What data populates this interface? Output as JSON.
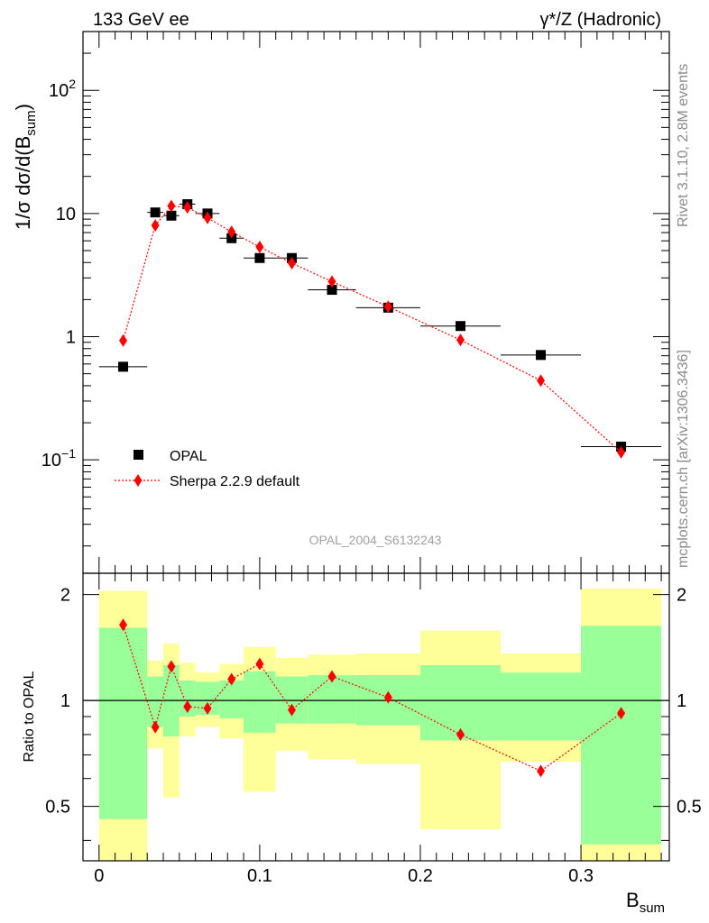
{
  "header": {
    "left": "133 GeV ee",
    "right": "γ*/Z (Hadronic)"
  },
  "side": {
    "rivet": "Rivet 3.1.10,  2.8M events",
    "mcplots": "mcplots.cern.ch [arXiv:1306.3436]"
  },
  "watermark": "OPAL_2004_S6132243",
  "legend": {
    "data_label": "OPAL",
    "mc_label": "Sherpa 2.2.9 default"
  },
  "colors": {
    "data": "#000000",
    "mc": "#ff0000",
    "band_inner": "#99ff99",
    "band_outer": "#ffff99"
  },
  "chart_data": [
    {
      "type": "scatter",
      "panel": "main",
      "ylabel_main": "1/σ dσ/d(B",
      "ylabel_sub": "sum",
      "ylabel_close": ")",
      "yscale": "log",
      "ylim": [
        0.012,
        300
      ],
      "xlim": [
        -0.01,
        0.355
      ],
      "y_ticks": [
        {
          "value": 0.1,
          "base": "10",
          "exp": "−1"
        },
        {
          "value": 1,
          "text": "1"
        },
        {
          "value": 10,
          "text": "10"
        },
        {
          "value": 100,
          "base": "10",
          "exp": "2"
        }
      ],
      "series": [
        {
          "name": "OPAL",
          "marker": "square",
          "x": [
            0.015,
            0.035,
            0.045,
            0.055,
            0.0675,
            0.0825,
            0.1,
            0.12,
            0.145,
            0.18,
            0.225,
            0.275,
            0.325
          ],
          "y": [
            0.57,
            10.2,
            9.6,
            11.9,
            10.0,
            6.3,
            4.35,
            4.35,
            2.4,
            1.72,
            1.22,
            0.71,
            0.128
          ],
          "xerr": [
            0.015,
            0.005,
            0.005,
            0.005,
            0.0075,
            0.0075,
            0.01,
            0.01,
            0.015,
            0.02,
            0.025,
            0.025,
            0.025
          ]
        },
        {
          "name": "Sherpa 2.2.9 default",
          "marker": "diamond",
          "x": [
            0.015,
            0.035,
            0.045,
            0.055,
            0.0675,
            0.0825,
            0.1,
            0.12,
            0.145,
            0.18,
            0.225,
            0.275,
            0.325
          ],
          "y": [
            0.93,
            8.0,
            11.5,
            11.2,
            9.2,
            7.1,
            5.35,
            3.95,
            2.8,
            1.75,
            0.94,
            0.44,
            0.115
          ]
        }
      ]
    },
    {
      "type": "line",
      "panel": "ratio",
      "ylabel": "Ratio to OPAL",
      "xlabel_base": "B",
      "xlabel_sub": "sum",
      "yscale": "log",
      "ylim": [
        0.35,
        2.3
      ],
      "xlim": [
        -0.01,
        0.355
      ],
      "x_ticks": [
        {
          "value": 0,
          "text": "0"
        },
        {
          "value": 0.1,
          "text": "0.1"
        },
        {
          "value": 0.2,
          "text": "0.2"
        },
        {
          "value": 0.3,
          "text": "0.3"
        }
      ],
      "y_ticks": [
        {
          "value": 0.5,
          "text": "0.5"
        },
        {
          "value": 1,
          "text": "1"
        },
        {
          "value": 2,
          "text": "2"
        }
      ],
      "bands": [
        {
          "x0": 0.0,
          "x1": 0.03,
          "in_lo": 0.46,
          "in_hi": 1.61,
          "out_lo": 0.3,
          "out_hi": 2.05
        },
        {
          "x0": 0.03,
          "x1": 0.04,
          "in_lo": 0.84,
          "in_hi": 1.17,
          "out_lo": 0.73,
          "out_hi": 1.3
        },
        {
          "x0": 0.04,
          "x1": 0.05,
          "in_lo": 0.79,
          "in_hi": 1.26,
          "out_lo": 0.53,
          "out_hi": 1.45
        },
        {
          "x0": 0.05,
          "x1": 0.06,
          "in_lo": 0.9,
          "in_hi": 1.14,
          "out_lo": 0.79,
          "out_hi": 1.28
        },
        {
          "x0": 0.06,
          "x1": 0.075,
          "in_lo": 0.91,
          "in_hi": 1.13,
          "out_lo": 0.84,
          "out_hi": 1.2
        },
        {
          "x0": 0.075,
          "x1": 0.09,
          "in_lo": 0.89,
          "in_hi": 1.14,
          "out_lo": 0.78,
          "out_hi": 1.27
        },
        {
          "x0": 0.09,
          "x1": 0.11,
          "in_lo": 0.81,
          "in_hi": 1.21,
          "out_lo": 0.55,
          "out_hi": 1.42
        },
        {
          "x0": 0.11,
          "x1": 0.13,
          "in_lo": 0.86,
          "in_hi": 1.17,
          "out_lo": 0.72,
          "out_hi": 1.32
        },
        {
          "x0": 0.13,
          "x1": 0.16,
          "in_lo": 0.86,
          "in_hi": 1.18,
          "out_lo": 0.68,
          "out_hi": 1.35
        },
        {
          "x0": 0.16,
          "x1": 0.2,
          "in_lo": 0.85,
          "in_hi": 1.18,
          "out_lo": 0.66,
          "out_hi": 1.36
        },
        {
          "x0": 0.2,
          "x1": 0.25,
          "in_lo": 0.77,
          "in_hi": 1.26,
          "out_lo": 0.43,
          "out_hi": 1.58
        },
        {
          "x0": 0.25,
          "x1": 0.3,
          "in_lo": 0.77,
          "in_hi": 1.2,
          "out_lo": 0.67,
          "out_hi": 1.36
        },
        {
          "x0": 0.3,
          "x1": 0.35,
          "in_lo": 0.39,
          "in_hi": 1.63,
          "out_lo": 0.35,
          "out_hi": 2.08
        }
      ],
      "series": [
        {
          "name": "Sherpa 2.2.9 default",
          "marker": "diamond",
          "x": [
            0.015,
            0.035,
            0.045,
            0.055,
            0.0675,
            0.0825,
            0.1,
            0.12,
            0.145,
            0.18,
            0.225,
            0.275,
            0.325
          ],
          "y": [
            1.64,
            0.84,
            1.25,
            0.96,
            0.95,
            1.15,
            1.27,
            0.94,
            1.17,
            1.02,
            0.8,
            0.63,
            0.92
          ]
        }
      ]
    }
  ]
}
